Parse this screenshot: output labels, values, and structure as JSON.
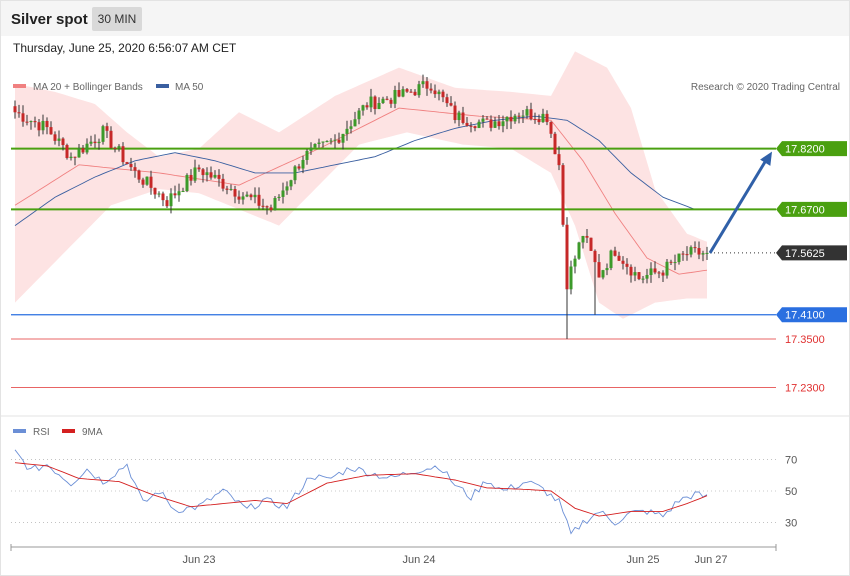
{
  "header": {
    "title": "Silver spot",
    "interval": "30 MIN",
    "timestamp": "Thursday, June 25, 2020 6:56:07 AM CET",
    "credit": "Research © 2020 Trading Central"
  },
  "legend": {
    "price": [
      {
        "label": "MA 20 + Bollinger Bands",
        "color": "#f08080"
      },
      {
        "label": "MA 50",
        "color": "#3a5fa0"
      }
    ],
    "rsi": [
      {
        "label": "RSI",
        "color": "#6b8fd6"
      },
      {
        "label": "9MA",
        "color": "#d42020"
      }
    ]
  },
  "chart_data": [
    {
      "type": "candlestick",
      "ylim": [
        17.16,
        17.94
      ],
      "x_labels": [
        "Jun 23",
        "Jun 24",
        "Jun 25",
        "Jun 27"
      ],
      "current_price": {
        "label": "17.5625",
        "value": 17.5625
      },
      "levels": [
        {
          "label": "17.8200",
          "value": 17.82,
          "kind": "resistance",
          "color": "#4aa010"
        },
        {
          "label": "17.6700",
          "value": 17.67,
          "kind": "resistance",
          "color": "#4aa010"
        },
        {
          "label": "17.4100",
          "value": 17.41,
          "kind": "pivot",
          "color": "#2a6fe0"
        },
        {
          "label": "17.3500",
          "value": 17.35,
          "kind": "support",
          "color": "#e03030"
        },
        {
          "label": "17.2300",
          "value": 17.23,
          "kind": "support",
          "color": "#e03030"
        }
      ],
      "projection": {
        "from": 17.5625,
        "to": 17.82
      },
      "anchors": [
        {
          "i": 0,
          "c": 17.91
        },
        {
          "i": 8,
          "c": 17.87
        },
        {
          "i": 14,
          "c": 17.8
        },
        {
          "i": 22,
          "c": 17.86
        },
        {
          "i": 30,
          "c": 17.76
        },
        {
          "i": 38,
          "c": 17.69
        },
        {
          "i": 46,
          "c": 17.77
        },
        {
          "i": 56,
          "c": 17.71
        },
        {
          "i": 64,
          "c": 17.67
        },
        {
          "i": 72,
          "c": 17.8
        },
        {
          "i": 80,
          "c": 17.84
        },
        {
          "i": 88,
          "c": 17.93
        },
        {
          "i": 96,
          "c": 17.95
        },
        {
          "i": 104,
          "c": 17.98
        },
        {
          "i": 110,
          "c": 17.9
        },
        {
          "i": 118,
          "c": 17.88
        },
        {
          "i": 126,
          "c": 17.91
        },
        {
          "i": 133,
          "c": 17.9
        },
        {
          "i": 136,
          "c": 17.78
        },
        {
          "i": 138,
          "c": 17.49
        },
        {
          "i": 142,
          "c": 17.61
        },
        {
          "i": 146,
          "c": 17.51
        },
        {
          "i": 150,
          "c": 17.57
        },
        {
          "i": 156,
          "c": 17.5
        },
        {
          "i": 162,
          "c": 17.52
        },
        {
          "i": 168,
          "c": 17.56
        },
        {
          "i": 173,
          "c": 17.5625
        }
      ],
      "bollinger": {
        "upper": [
          [
            0,
            17.98
          ],
          [
            10,
            17.96
          ],
          [
            20,
            17.93
          ],
          [
            28,
            17.86
          ],
          [
            36,
            17.8
          ],
          [
            46,
            17.82
          ],
          [
            56,
            17.91
          ],
          [
            66,
            17.86
          ],
          [
            80,
            17.95
          ],
          [
            96,
            18.02
          ],
          [
            110,
            17.97
          ],
          [
            124,
            17.96
          ],
          [
            134,
            17.95
          ],
          [
            140,
            18.06
          ],
          [
            148,
            18.02
          ],
          [
            154,
            17.92
          ],
          [
            160,
            17.72
          ],
          [
            168,
            17.61
          ],
          [
            173,
            17.59
          ]
        ],
        "lower": [
          [
            0,
            17.44
          ],
          [
            12,
            17.56
          ],
          [
            24,
            17.68
          ],
          [
            36,
            17.72
          ],
          [
            46,
            17.71
          ],
          [
            56,
            17.67
          ],
          [
            66,
            17.63
          ],
          [
            74,
            17.71
          ],
          [
            86,
            17.83
          ],
          [
            98,
            17.86
          ],
          [
            112,
            17.83
          ],
          [
            124,
            17.82
          ],
          [
            134,
            17.76
          ],
          [
            140,
            17.63
          ],
          [
            146,
            17.44
          ],
          [
            152,
            17.4
          ],
          [
            160,
            17.44
          ],
          [
            168,
            17.45
          ],
          [
            173,
            17.45
          ]
        ],
        "middle": [
          [
            0,
            17.68
          ],
          [
            16,
            17.78
          ],
          [
            36,
            17.76
          ],
          [
            56,
            17.73
          ],
          [
            76,
            17.82
          ],
          [
            96,
            17.92
          ],
          [
            116,
            17.9
          ],
          [
            134,
            17.89
          ],
          [
            142,
            17.79
          ],
          [
            150,
            17.66
          ],
          [
            158,
            17.55
          ],
          [
            166,
            17.51
          ],
          [
            173,
            17.52
          ]
        ]
      },
      "ma50": [
        [
          0,
          17.63
        ],
        [
          10,
          17.7
        ],
        [
          20,
          17.75
        ],
        [
          30,
          17.79
        ],
        [
          40,
          17.81
        ],
        [
          50,
          17.79
        ],
        [
          60,
          17.76
        ],
        [
          70,
          17.76
        ],
        [
          80,
          17.78
        ],
        [
          90,
          17.8
        ],
        [
          100,
          17.84
        ],
        [
          110,
          17.87
        ],
        [
          120,
          17.89
        ],
        [
          130,
          17.9
        ],
        [
          138,
          17.89
        ],
        [
          146,
          17.84
        ],
        [
          154,
          17.76
        ],
        [
          162,
          17.7
        ],
        [
          170,
          17.67
        ],
        [
          173,
          17.67
        ]
      ]
    },
    {
      "type": "line",
      "ylim": [
        15,
        85
      ],
      "ticks": [
        "70",
        "50",
        "30"
      ],
      "tick_values": [
        70,
        50,
        30
      ],
      "series": [
        {
          "name": "RSI",
          "anchors": [
            [
              0,
              75
            ],
            [
              4,
              63
            ],
            [
              8,
              67
            ],
            [
              14,
              55
            ],
            [
              18,
              64
            ],
            [
              22,
              56
            ],
            [
              28,
              67
            ],
            [
              32,
              42
            ],
            [
              36,
              50
            ],
            [
              40,
              38
            ],
            [
              46,
              40
            ],
            [
              52,
              50
            ],
            [
              58,
              38
            ],
            [
              62,
              44
            ],
            [
              68,
              40
            ],
            [
              74,
              60
            ],
            [
              78,
              57
            ],
            [
              84,
              65
            ],
            [
              88,
              62
            ],
            [
              94,
              58
            ],
            [
              100,
              63
            ],
            [
              106,
              66
            ],
            [
              110,
              54
            ],
            [
              114,
              46
            ],
            [
              118,
              57
            ],
            [
              122,
              50
            ],
            [
              128,
              56
            ],
            [
              132,
              51
            ],
            [
              136,
              43
            ],
            [
              139,
              22
            ],
            [
              142,
              30
            ],
            [
              146,
              37
            ],
            [
              150,
              30
            ],
            [
              154,
              36
            ],
            [
              158,
              37
            ],
            [
              162,
              34
            ],
            [
              166,
              44
            ],
            [
              170,
              48
            ],
            [
              173,
              46
            ]
          ]
        },
        {
          "name": "9MA",
          "anchors": [
            [
              0,
              68
            ],
            [
              8,
              66
            ],
            [
              16,
              58
            ],
            [
              26,
              56
            ],
            [
              34,
              48
            ],
            [
              44,
              40
            ],
            [
              52,
              42
            ],
            [
              60,
              44
            ],
            [
              68,
              42
            ],
            [
              78,
              55
            ],
            [
              88,
              60
            ],
            [
              100,
              61
            ],
            [
              110,
              57
            ],
            [
              118,
              52
            ],
            [
              128,
              51
            ],
            [
              134,
              50
            ],
            [
              140,
              39
            ],
            [
              146,
              34
            ],
            [
              154,
              37
            ],
            [
              162,
              37
            ],
            [
              168,
              42
            ],
            [
              173,
              47
            ]
          ]
        }
      ]
    }
  ]
}
